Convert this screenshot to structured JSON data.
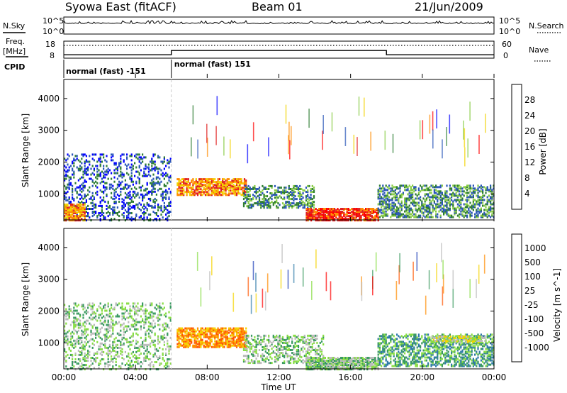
{
  "header": {
    "radar": "Syowa East (fitACF)",
    "beam": "Beam 01",
    "date": "21/Jun/2009"
  },
  "noise_panel": {
    "left_label": "N.Sky",
    "right_label": "N.Search",
    "left_ticks": [
      "10^5",
      "10^0"
    ],
    "right_ticks": [
      "10^5",
      "10^0"
    ]
  },
  "freq_panel": {
    "left_label_1": "Freq.",
    "left_label_2": "[MHz]",
    "right_label": "Nave",
    "left_ticks": [
      "18",
      "8"
    ],
    "right_ticks": [
      "60",
      "0"
    ],
    "freq_levels_mhz": [
      {
        "start": 0,
        "end": 6,
        "value": 10.0
      },
      {
        "start": 6,
        "end": 18,
        "value": 12.5
      },
      {
        "start": 18,
        "end": 24,
        "value": 10.0
      }
    ],
    "nave_level": 45
  },
  "cpid": {
    "label": "CPID",
    "segments": [
      {
        "start": 0,
        "end": 6,
        "text": "normal (fast) -151"
      },
      {
        "start": 6,
        "end": 24,
        "text": "normal (fast) 151"
      }
    ]
  },
  "chart_data": [
    {
      "type": "heatmap",
      "name": "power",
      "ylabel": "Slant Range [km]",
      "xlabel": "",
      "ylim": [
        180,
        4600
      ],
      "xlim": [
        0,
        24
      ],
      "y_ticks": [
        "1000",
        "2000",
        "3000",
        "4000"
      ],
      "y_tick_values": [
        1000,
        2000,
        3000,
        4000
      ],
      "colorbar_label": "Power [dB]",
      "colorbar_ticks": [
        "4",
        "8",
        "12",
        "16",
        "20",
        "24",
        "28"
      ],
      "colorbar_colors": [
        "#0000ff",
        "#2a56b8",
        "#2e7d32",
        "#88cc44",
        "#f2d200",
        "#ff8c00",
        "#e02020",
        "#ff0000"
      ],
      "echo_regions": [
        {
          "t0": 0.0,
          "t1": 6.0,
          "r0": 200,
          "r1": 2300,
          "density": 0.28,
          "level": 1
        },
        {
          "t0": 0.0,
          "t1": 1.2,
          "r0": 200,
          "r1": 700,
          "density": 0.8,
          "level": 5
        },
        {
          "t0": 6.3,
          "t1": 10.2,
          "r0": 1000,
          "r1": 1500,
          "density": 0.75,
          "level": 5
        },
        {
          "t0": 10.0,
          "t1": 14.0,
          "r0": 600,
          "r1": 1300,
          "density": 0.45,
          "level": 2
        },
        {
          "t0": 13.5,
          "t1": 17.5,
          "r0": 200,
          "r1": 600,
          "density": 0.85,
          "level": 6
        },
        {
          "t0": 17.5,
          "t1": 24.0,
          "r0": 300,
          "r1": 1300,
          "density": 0.5,
          "level": 2
        }
      ]
    },
    {
      "type": "heatmap",
      "name": "velocity",
      "ylabel": "Slant Range [km]",
      "xlabel": "Time UT",
      "ylim": [
        180,
        4600
      ],
      "xlim": [
        0,
        24
      ],
      "y_ticks": [
        "1000",
        "2000",
        "3000",
        "4000"
      ],
      "y_tick_values": [
        1000,
        2000,
        3000,
        4000
      ],
      "x_ticks": [
        "00:00",
        "04:00",
        "08:00",
        "12:00",
        "16:00",
        "20:00",
        "00:00"
      ],
      "x_tick_values": [
        0,
        4,
        8,
        12,
        16,
        20,
        24
      ],
      "colorbar_label": "Velocity [m s^-1]",
      "colorbar_ticks": [
        "1000",
        "500",
        "100",
        "25",
        "-25",
        "-100",
        "-500",
        "-1000"
      ],
      "colorbar_colors": [
        "#1c3fb8",
        "#2f7aa8",
        "#3a9a60",
        "#88dd44",
        "#bbbbbb",
        "#f5d300",
        "#ff8c00",
        "#ff5500",
        "#ff0000"
      ],
      "echo_regions": [
        {
          "t0": 0.0,
          "t1": 6.0,
          "r0": 200,
          "r1": 2300,
          "density": 0.28,
          "level": 3
        },
        {
          "t0": 6.3,
          "t1": 10.2,
          "r0": 900,
          "r1": 1500,
          "density": 0.75,
          "level": 6
        },
        {
          "t0": 10.0,
          "t1": 14.5,
          "r0": 400,
          "r1": 1300,
          "density": 0.4,
          "level": 3
        },
        {
          "t0": 13.5,
          "t1": 17.5,
          "r0": 200,
          "r1": 600,
          "density": 0.8,
          "level": 3
        },
        {
          "t0": 17.5,
          "t1": 24.0,
          "r0": 300,
          "r1": 1300,
          "density": 0.5,
          "level": 2
        },
        {
          "t0": 20.5,
          "t1": 23.5,
          "r0": 1050,
          "r1": 1250,
          "density": 0.7,
          "level": 4
        }
      ]
    }
  ]
}
